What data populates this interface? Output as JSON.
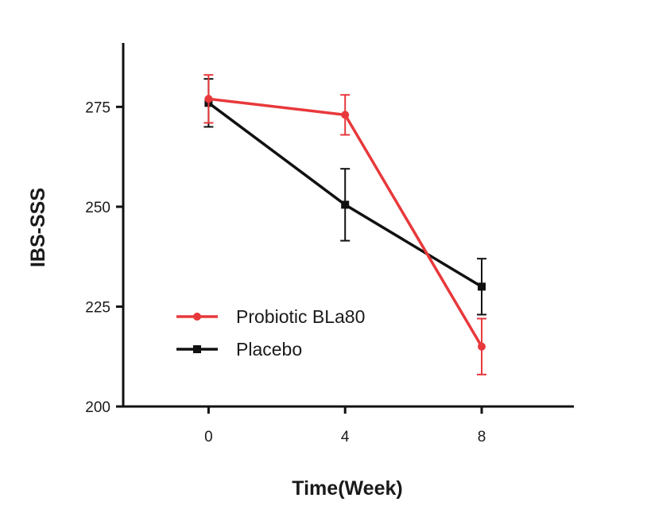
{
  "chart_data": {
    "type": "line",
    "title": "",
    "xlabel": "Time(Week)",
    "ylabel": "IBS-SSS",
    "x": [
      0,
      4,
      8
    ],
    "x_ticks": [
      "0",
      "4",
      "8"
    ],
    "xlim": [
      -2.5,
      10.7
    ],
    "y_ticks": [
      "200",
      "225",
      "250",
      "275"
    ],
    "ylim": [
      200,
      291
    ],
    "grid": false,
    "legend_position": "bottom-left",
    "series": [
      {
        "name": "Probiotic BLa80",
        "color": "#e8383b",
        "marker": "circle",
        "values": [
          277,
          273,
          215
        ],
        "error": [
          6,
          5,
          7
        ]
      },
      {
        "name": "Placebo",
        "color": "#111111",
        "marker": "square",
        "values": [
          276,
          250.5,
          230
        ],
        "error": [
          6,
          9,
          7
        ]
      }
    ]
  }
}
